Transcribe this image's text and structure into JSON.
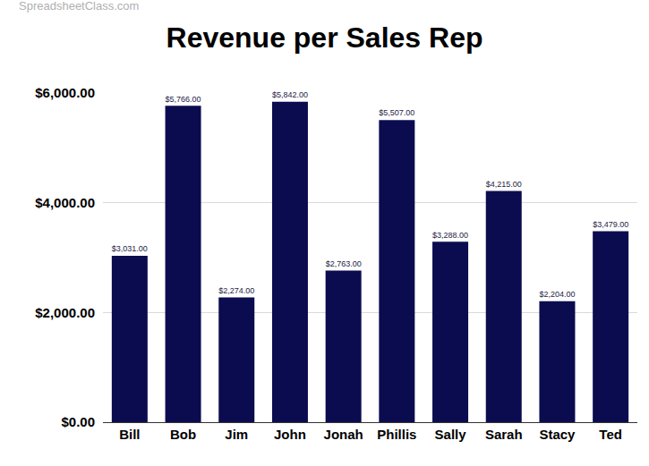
{
  "chart_data": {
    "type": "bar",
    "title": "Revenue per Sales Rep",
    "annotations": [
      "SpreadsheetClass.com"
    ],
    "categories": [
      "Bill",
      "Bob",
      "Jim",
      "John",
      "Jonah",
      "Phillis",
      "Sally",
      "Sarah",
      "Stacy",
      "Ted"
    ],
    "values": [
      3031,
      5766,
      2274,
      5842,
      2763,
      5507,
      3288,
      4215,
      2204,
      3479
    ],
    "value_labels": [
      "$3,031.00",
      "$5,766.00",
      "$2,274.00",
      "$5,842.00",
      "$2,763.00",
      "$5,507.00",
      "$3,288.00",
      "$4,215.00",
      "$2,204.00",
      "$3,479.00"
    ],
    "color": "#0b0c4f",
    "ylim": [
      0,
      6000
    ],
    "yticks": [
      {
        "value": 0,
        "label": "$0.00"
      },
      {
        "value": 2000,
        "label": "$2,000.00"
      },
      {
        "value": 4000,
        "label": "$4,000.00"
      },
      {
        "value": 6000,
        "label": "$6,000.00"
      }
    ],
    "grid": true,
    "data_labels": true
  }
}
